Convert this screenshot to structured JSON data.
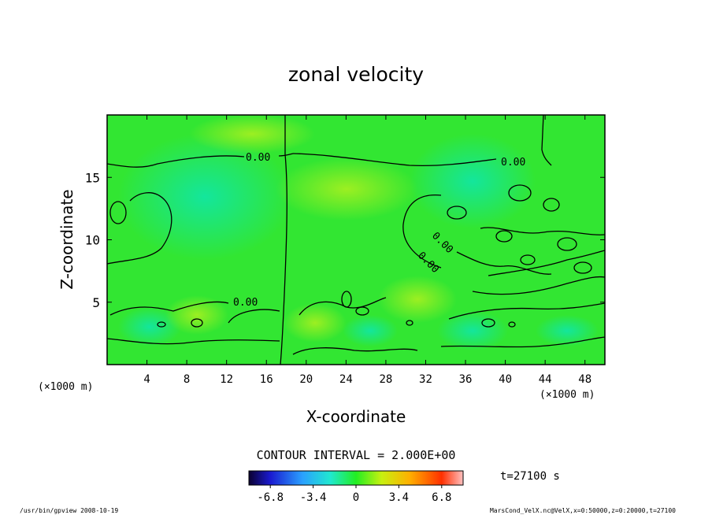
{
  "chart_data": {
    "type": "heatmap",
    "title": "zonal velocity",
    "xlabel": "X-coordinate",
    "ylabel": "Z-coordinate",
    "x_unit": "(×1000 m)",
    "y_unit": "(×1000 m)",
    "xlim": [
      0,
      50
    ],
    "ylim": [
      0,
      20
    ],
    "x_ticks": [
      "4",
      "8",
      "12",
      "16",
      "20",
      "24",
      "28",
      "32",
      "36",
      "40",
      "44",
      "48"
    ],
    "y_ticks": [
      "5",
      "10",
      "15"
    ],
    "contour_labels": [
      "0.00",
      "0.00",
      "0.00",
      "0.00",
      "0.00"
    ],
    "contour_interval_text": "CONTOUR INTERVAL = 2.000E+00",
    "time_text": "t=27100 s",
    "colorbar": {
      "min": -8.5,
      "max": 8.5,
      "tick_labels": [
        "-6.8",
        "-3.4",
        "0",
        "3.4",
        "6.8"
      ]
    },
    "footer_left": "/usr/bin/gpview  2008-10-19",
    "footer_right": "MarsCond_VelX.nc@VelX,x=0:50000,z=0:20000,t=27100"
  }
}
